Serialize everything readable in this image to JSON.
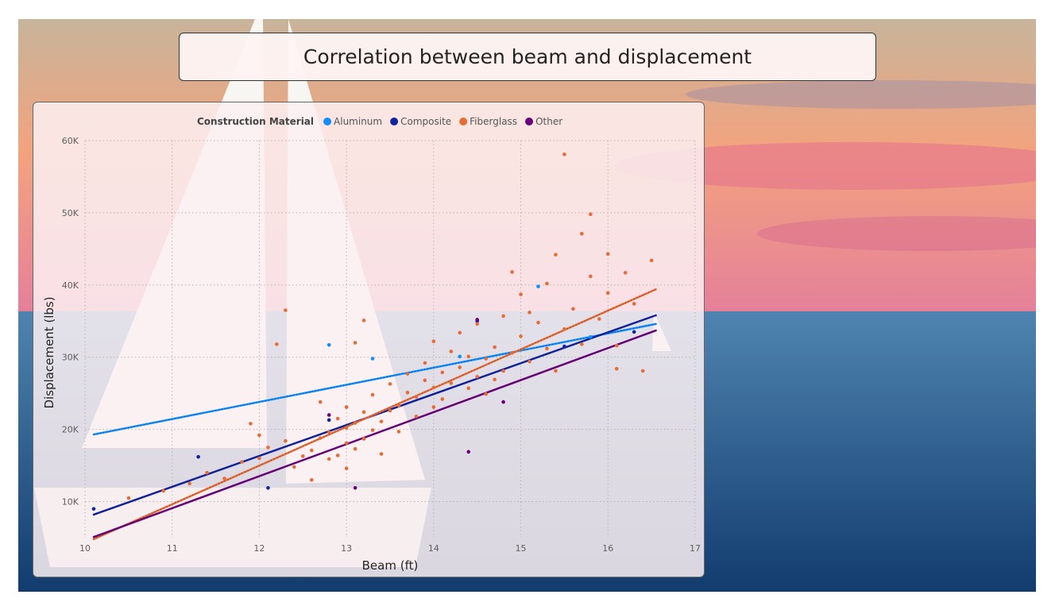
{
  "page": {
    "title": "Correlation between beam and displacement"
  },
  "colors": {
    "sky_top": "#c7b49a",
    "sky_mid": "#f3a37e",
    "sky_low": "#e5809a",
    "sea_top": "#4f84b0",
    "sea_bottom": "#123c6e",
    "sail": "#f8f6f3"
  },
  "chart_data": {
    "type": "scatter",
    "xlabel": "Beam (ft)",
    "ylabel": "Displacement (lbs)",
    "xlim": [
      10,
      17
    ],
    "ylim": [
      5000,
      60000
    ],
    "x_ticks": [
      10,
      11,
      12,
      13,
      14,
      15,
      16,
      17
    ],
    "y_ticks": [
      10000,
      20000,
      30000,
      40000,
      50000,
      60000
    ],
    "x_tick_labels": [
      "10",
      "11",
      "12",
      "13",
      "14",
      "15",
      "16",
      "17"
    ],
    "y_tick_labels": [
      "10K",
      "20K",
      "30K",
      "40K",
      "50K",
      "60K"
    ],
    "grid": true,
    "legend": {
      "title": "Construction Material",
      "placement": "top-left"
    },
    "series": [
      {
        "name": "Aluminum",
        "color": "#118dff",
        "points": [
          [
            12.8,
            31700
          ],
          [
            13.3,
            29800
          ],
          [
            15.2,
            39800
          ],
          [
            14.3,
            30100
          ],
          [
            15.8,
            32800
          ]
        ],
        "trend": [
          [
            10.1,
            19300
          ],
          [
            16.55,
            34600
          ]
        ]
      },
      {
        "name": "Composite",
        "color": "#12239e",
        "points": [
          [
            10.1,
            9000
          ],
          [
            11.3,
            16200
          ],
          [
            12.1,
            11900
          ],
          [
            12.8,
            21300
          ],
          [
            14.5,
            35000
          ],
          [
            15.5,
            31500
          ],
          [
            16.3,
            33500
          ]
        ],
        "trend": [
          [
            10.1,
            8200
          ],
          [
            16.55,
            35800
          ]
        ]
      },
      {
        "name": "Fiberglass",
        "color": "#e66c37",
        "points": [
          [
            10.5,
            10500
          ],
          [
            10.9,
            11500
          ],
          [
            11.2,
            12500
          ],
          [
            11.4,
            14000
          ],
          [
            11.6,
            13200
          ],
          [
            11.8,
            15500
          ],
          [
            11.9,
            20800
          ],
          [
            12.0,
            16000
          ],
          [
            12.0,
            19200
          ],
          [
            12.1,
            17500
          ],
          [
            12.2,
            31800
          ],
          [
            12.3,
            36500
          ],
          [
            12.3,
            18400
          ],
          [
            12.4,
            14800
          ],
          [
            12.5,
            16300
          ],
          [
            12.6,
            17100
          ],
          [
            12.6,
            13000
          ],
          [
            12.7,
            18800
          ],
          [
            12.7,
            23800
          ],
          [
            12.8,
            15900
          ],
          [
            12.8,
            19600
          ],
          [
            12.9,
            16400
          ],
          [
            12.9,
            21500
          ],
          [
            13.0,
            18100
          ],
          [
            13.0,
            20200
          ],
          [
            13.0,
            23100
          ],
          [
            13.0,
            14600
          ],
          [
            13.1,
            32000
          ],
          [
            13.1,
            17300
          ],
          [
            13.1,
            20900
          ],
          [
            13.2,
            35100
          ],
          [
            13.2,
            18700
          ],
          [
            13.2,
            22400
          ],
          [
            13.3,
            19900
          ],
          [
            13.3,
            24800
          ],
          [
            13.4,
            21100
          ],
          [
            13.4,
            16600
          ],
          [
            13.5,
            22600
          ],
          [
            13.5,
            26300
          ],
          [
            13.6,
            23300
          ],
          [
            13.6,
            19700
          ],
          [
            13.7,
            25100
          ],
          [
            13.7,
            27700
          ],
          [
            13.8,
            21800
          ],
          [
            13.8,
            24500
          ],
          [
            13.9,
            26800
          ],
          [
            13.9,
            29200
          ],
          [
            14.0,
            23100
          ],
          [
            14.0,
            25800
          ],
          [
            14.0,
            32200
          ],
          [
            14.1,
            27900
          ],
          [
            14.1,
            24200
          ],
          [
            14.2,
            30800
          ],
          [
            14.2,
            26400
          ],
          [
            14.3,
            28600
          ],
          [
            14.3,
            33400
          ],
          [
            14.4,
            25700
          ],
          [
            14.4,
            30100
          ],
          [
            14.5,
            27300
          ],
          [
            14.5,
            34600
          ],
          [
            14.6,
            29800
          ],
          [
            14.6,
            24900
          ],
          [
            14.7,
            31400
          ],
          [
            14.7,
            26900
          ],
          [
            14.8,
            35700
          ],
          [
            14.8,
            28100
          ],
          [
            14.9,
            30600
          ],
          [
            14.9,
            41800
          ],
          [
            15.0,
            38700
          ],
          [
            15.0,
            32900
          ],
          [
            15.1,
            36200
          ],
          [
            15.1,
            29400
          ],
          [
            15.2,
            34800
          ],
          [
            15.3,
            40200
          ],
          [
            15.3,
            31200
          ],
          [
            15.4,
            44200
          ],
          [
            15.4,
            28100
          ],
          [
            15.5,
            33900
          ],
          [
            15.5,
            58100
          ],
          [
            15.6,
            36700
          ],
          [
            15.7,
            47100
          ],
          [
            15.7,
            31800
          ],
          [
            15.8,
            41200
          ],
          [
            15.8,
            49800
          ],
          [
            15.9,
            35300
          ],
          [
            16.0,
            44300
          ],
          [
            16.0,
            38900
          ],
          [
            16.1,
            31600
          ],
          [
            16.1,
            28400
          ],
          [
            16.2,
            41700
          ],
          [
            16.3,
            37400
          ],
          [
            16.4,
            28100
          ],
          [
            16.5,
            43400
          ]
        ],
        "trend": [
          [
            10.1,
            4800
          ],
          [
            16.55,
            39400
          ]
        ]
      },
      {
        "name": "Other",
        "color": "#6b007b",
        "points": [
          [
            12.8,
            22000
          ],
          [
            13.1,
            11900
          ],
          [
            14.4,
            16900
          ],
          [
            14.5,
            35200
          ],
          [
            14.8,
            23800
          ]
        ],
        "trend": [
          [
            10.1,
            5100
          ],
          [
            16.55,
            33700
          ]
        ]
      }
    ]
  }
}
